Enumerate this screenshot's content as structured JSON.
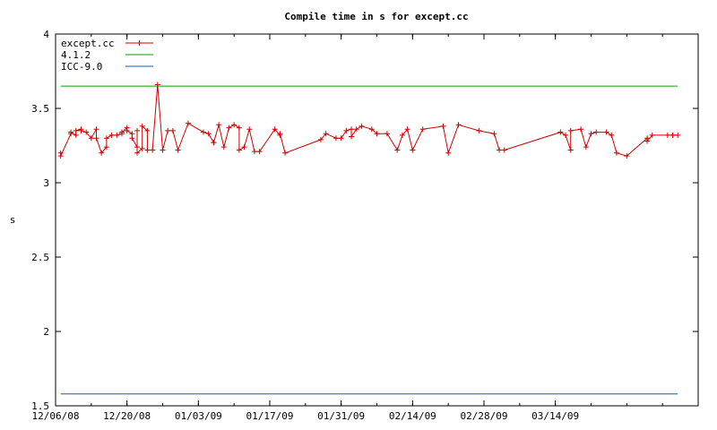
{
  "chart_data": {
    "type": "line",
    "title": "Compile time in s for except.cc",
    "xlabel": "",
    "ylabel": "s",
    "ylim": [
      1.5,
      4
    ],
    "yticks": [
      "1.5",
      "2",
      "2.5",
      "3",
      "3.5",
      "4"
    ],
    "xlim": [
      "2008-12-06",
      "2009-04-11"
    ],
    "xticks": [
      "12/06/08",
      "12/20/08",
      "01/03/09",
      "01/17/09",
      "01/31/09",
      "02/14/09",
      "02/28/09",
      "03/14/09"
    ],
    "legend_position": "top-left",
    "grid": false,
    "series": [
      {
        "name": "except.cc",
        "color": "#d00000",
        "marker": "plus",
        "x": [
          "2008-12-07",
          "2008-12-07",
          "2008-12-09",
          "2008-12-09",
          "2008-12-10",
          "2008-12-10",
          "2008-12-11",
          "2008-12-11",
          "2008-12-12",
          "2008-12-13",
          "2008-12-14",
          "2008-12-14",
          "2008-12-15",
          "2008-12-16",
          "2008-12-16",
          "2008-12-17",
          "2008-12-18",
          "2008-12-19",
          "2008-12-19",
          "2008-12-20",
          "2008-12-20",
          "2008-12-21",
          "2008-12-21",
          "2008-12-22",
          "2008-12-22",
          "2008-12-22",
          "2008-12-23",
          "2008-12-23",
          "2008-12-24",
          "2008-12-24",
          "2008-12-25",
          "2008-12-26",
          "2008-12-27",
          "2008-12-28",
          "2008-12-29",
          "2008-12-30",
          "2009-01-01",
          "2009-01-04",
          "2009-01-05",
          "2009-01-06",
          "2009-01-06",
          "2009-01-07",
          "2009-01-08",
          "2009-01-09",
          "2009-01-10",
          "2009-01-11",
          "2009-01-11",
          "2009-01-12",
          "2009-01-13",
          "2009-01-14",
          "2009-01-15",
          "2009-01-18",
          "2009-01-19",
          "2009-01-19",
          "2009-01-20",
          "2009-01-27",
          "2009-01-28",
          "2009-01-30",
          "2009-01-31",
          "2009-02-01",
          "2009-02-02",
          "2009-02-02",
          "2009-02-03",
          "2009-02-04",
          "2009-02-06",
          "2009-02-07",
          "2009-02-09",
          "2009-02-11",
          "2009-02-12",
          "2009-02-13",
          "2009-02-14",
          "2009-02-16",
          "2009-02-20",
          "2009-02-21",
          "2009-02-23",
          "2009-02-27",
          "2009-03-02",
          "2009-03-03",
          "2009-03-04",
          "2009-03-15",
          "2009-03-16",
          "2009-03-17",
          "2009-03-17",
          "2009-03-19",
          "2009-03-20",
          "2009-03-21",
          "2009-03-22",
          "2009-03-24",
          "2009-03-25",
          "2009-03-26",
          "2009-03-28",
          "2009-04-01",
          "2009-04-01",
          "2009-04-02",
          "2009-04-05",
          "2009-04-06",
          "2009-04-06",
          "2009-04-07"
        ],
        "y": [
          3.2,
          3.18,
          3.33,
          3.34,
          3.32,
          3.35,
          3.36,
          3.35,
          3.34,
          3.3,
          3.36,
          3.3,
          3.2,
          3.24,
          3.3,
          3.32,
          3.32,
          3.33,
          3.34,
          3.37,
          3.35,
          3.33,
          3.3,
          3.24,
          3.35,
          3.2,
          3.23,
          3.38,
          3.35,
          3.22,
          3.22,
          3.66,
          3.22,
          3.35,
          3.35,
          3.22,
          3.4,
          3.34,
          3.33,
          3.27,
          3.27,
          3.39,
          3.24,
          3.37,
          3.39,
          3.37,
          3.22,
          3.24,
          3.36,
          3.21,
          3.21,
          3.36,
          3.32,
          3.33,
          3.2,
          3.29,
          3.33,
          3.3,
          3.3,
          3.35,
          3.36,
          3.31,
          3.36,
          3.38,
          3.36,
          3.33,
          3.33,
          3.22,
          3.32,
          3.36,
          3.22,
          3.36,
          3.38,
          3.2,
          3.39,
          3.35,
          3.33,
          3.22,
          3.22,
          3.34,
          3.32,
          3.22,
          3.35,
          3.36,
          3.24,
          3.33,
          3.34,
          3.34,
          3.32,
          3.2,
          3.18,
          3.3,
          3.28,
          3.32,
          3.32,
          3.32,
          3.32,
          3.32
        ]
      },
      {
        "name": "4.1.2",
        "color": "#00a000",
        "x": [
          "2008-12-07",
          "2009-04-07"
        ],
        "y": [
          3.65,
          3.65
        ]
      },
      {
        "name": "ICC-9.0",
        "color": "#0060c0",
        "x": [
          "2008-12-07",
          "2009-04-07"
        ],
        "y": [
          1.58,
          1.58
        ]
      }
    ]
  }
}
